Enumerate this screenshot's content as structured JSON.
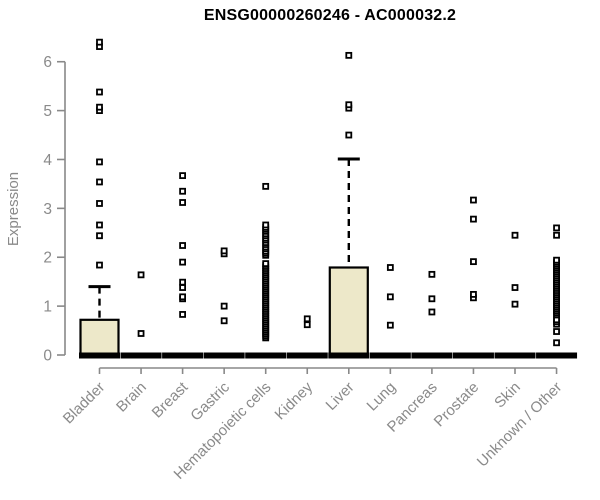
{
  "page": {
    "background": "#ffffff"
  },
  "chart_data": {
    "type": "boxplot",
    "title": "ENSG00000260246 - AC000032.2",
    "ylabel": "Expression",
    "xlabel": "",
    "ylim": [
      0,
      6.55
    ],
    "yticks": [
      0,
      1,
      2,
      3,
      4,
      5,
      6
    ],
    "grid": false,
    "legend": "none",
    "colors": {
      "box_fill": "#EDE8C9",
      "box_stroke": "#000000",
      "median": "#000000",
      "point_stroke": "#000000",
      "point_fill": "#ffffff",
      "axis_line": "#898989",
      "tick_text": "#8a8a8a",
      "title_text": "#000000"
    },
    "categories": [
      "Bladder",
      "Brain",
      "Breast",
      "Gastric",
      "Hematopoietic cells",
      "Kidney",
      "Liver",
      "Lung",
      "Pancreas",
      "Prostate",
      "Skin",
      "Unknown / Other"
    ],
    "series": [
      {
        "label": "Bladder",
        "box": {
          "q1": 0,
          "median": 0,
          "q3": 0.72,
          "whisker_low": 0,
          "whisker_high": 1.4
        },
        "outliers": [
          1.84,
          2.44,
          2.66,
          3.1,
          3.54,
          3.95,
          5.0,
          5.07,
          5.38,
          6.31,
          6.4
        ]
      },
      {
        "label": "Brain",
        "box": {
          "q1": 0,
          "median": 0,
          "q3": 0,
          "whisker_low": 0,
          "whisker_high": 0
        },
        "outliers": [
          0.44,
          1.64
        ]
      },
      {
        "label": "Breast",
        "box": {
          "q1": 0,
          "median": 0,
          "q3": 0,
          "whisker_low": 0,
          "whisker_high": 0
        },
        "outliers": [
          0.83,
          1.15,
          1.19,
          1.38,
          1.49,
          1.9,
          2.24,
          3.12,
          3.35,
          3.67
        ]
      },
      {
        "label": "Gastric",
        "box": {
          "q1": 0,
          "median": 0,
          "q3": 0,
          "whisker_low": 0,
          "whisker_high": 0
        },
        "outliers": [
          0.7,
          1.0,
          2.07,
          2.13
        ]
      },
      {
        "label": "Hematopoietic cells",
        "box": {
          "q1": 0,
          "median": 0,
          "q3": 0,
          "whisker_low": 0,
          "whisker_high": 0
        },
        "outliers": [
          0.35,
          0.39,
          0.43,
          0.47,
          0.51,
          0.55,
          0.59,
          0.63,
          0.67,
          0.71,
          0.75,
          0.79,
          0.83,
          0.87,
          0.91,
          0.95,
          0.99,
          1.03,
          1.07,
          1.11,
          1.15,
          1.19,
          1.23,
          1.27,
          1.31,
          1.35,
          1.39,
          1.43,
          1.47,
          1.51,
          1.55,
          1.59,
          1.63,
          1.67,
          1.71,
          1.75,
          1.79,
          1.83,
          1.87,
          2.04,
          2.08,
          2.12,
          2.17,
          2.21,
          2.26,
          2.3,
          2.35,
          2.39,
          2.44,
          2.48,
          2.53,
          2.57,
          2.61,
          2.66,
          3.45
        ]
      },
      {
        "label": "Kidney",
        "box": {
          "q1": 0,
          "median": 0,
          "q3": 0,
          "whisker_low": 0,
          "whisker_high": 0
        },
        "outliers": [
          0.62,
          0.74
        ]
      },
      {
        "label": "Liver",
        "box": {
          "q1": 0,
          "median": 0,
          "q3": 1.79,
          "whisker_low": 0,
          "whisker_high": 4.01
        },
        "outliers": [
          4.5,
          5.05,
          5.12,
          6.13
        ]
      },
      {
        "label": "Lung",
        "box": {
          "q1": 0,
          "median": 0,
          "q3": 0,
          "whisker_low": 0,
          "whisker_high": 0
        },
        "outliers": [
          0.61,
          1.19,
          1.79
        ]
      },
      {
        "label": "Pancreas",
        "box": {
          "q1": 0,
          "median": 0,
          "q3": 0,
          "whisker_low": 0,
          "whisker_high": 0
        },
        "outliers": [
          0.88,
          1.15,
          1.65
        ]
      },
      {
        "label": "Prostate",
        "box": {
          "q1": 0,
          "median": 0,
          "q3": 0,
          "whisker_low": 0,
          "whisker_high": 0
        },
        "outliers": [
          1.17,
          1.24,
          1.91,
          2.78,
          3.17
        ]
      },
      {
        "label": "Skin",
        "box": {
          "q1": 0,
          "median": 0,
          "q3": 0,
          "whisker_low": 0,
          "whisker_high": 0
        },
        "outliers": [
          1.04,
          1.38,
          2.45
        ]
      },
      {
        "label": "Unknown / Other",
        "box": {
          "q1": 0,
          "median": 0,
          "q3": 0,
          "whisker_low": 0,
          "whisker_high": 0
        },
        "outliers": [
          0.25,
          0.48,
          0.63,
          0.68,
          0.72,
          0.82,
          0.86,
          0.9,
          0.94,
          0.98,
          1.02,
          1.06,
          1.1,
          1.14,
          1.18,
          1.22,
          1.26,
          1.3,
          1.34,
          1.38,
          1.42,
          1.46,
          1.5,
          1.54,
          1.58,
          1.62,
          1.66,
          1.7,
          1.74,
          1.78,
          1.82,
          1.86,
          1.9,
          1.94,
          2.45,
          2.6
        ]
      }
    ]
  }
}
